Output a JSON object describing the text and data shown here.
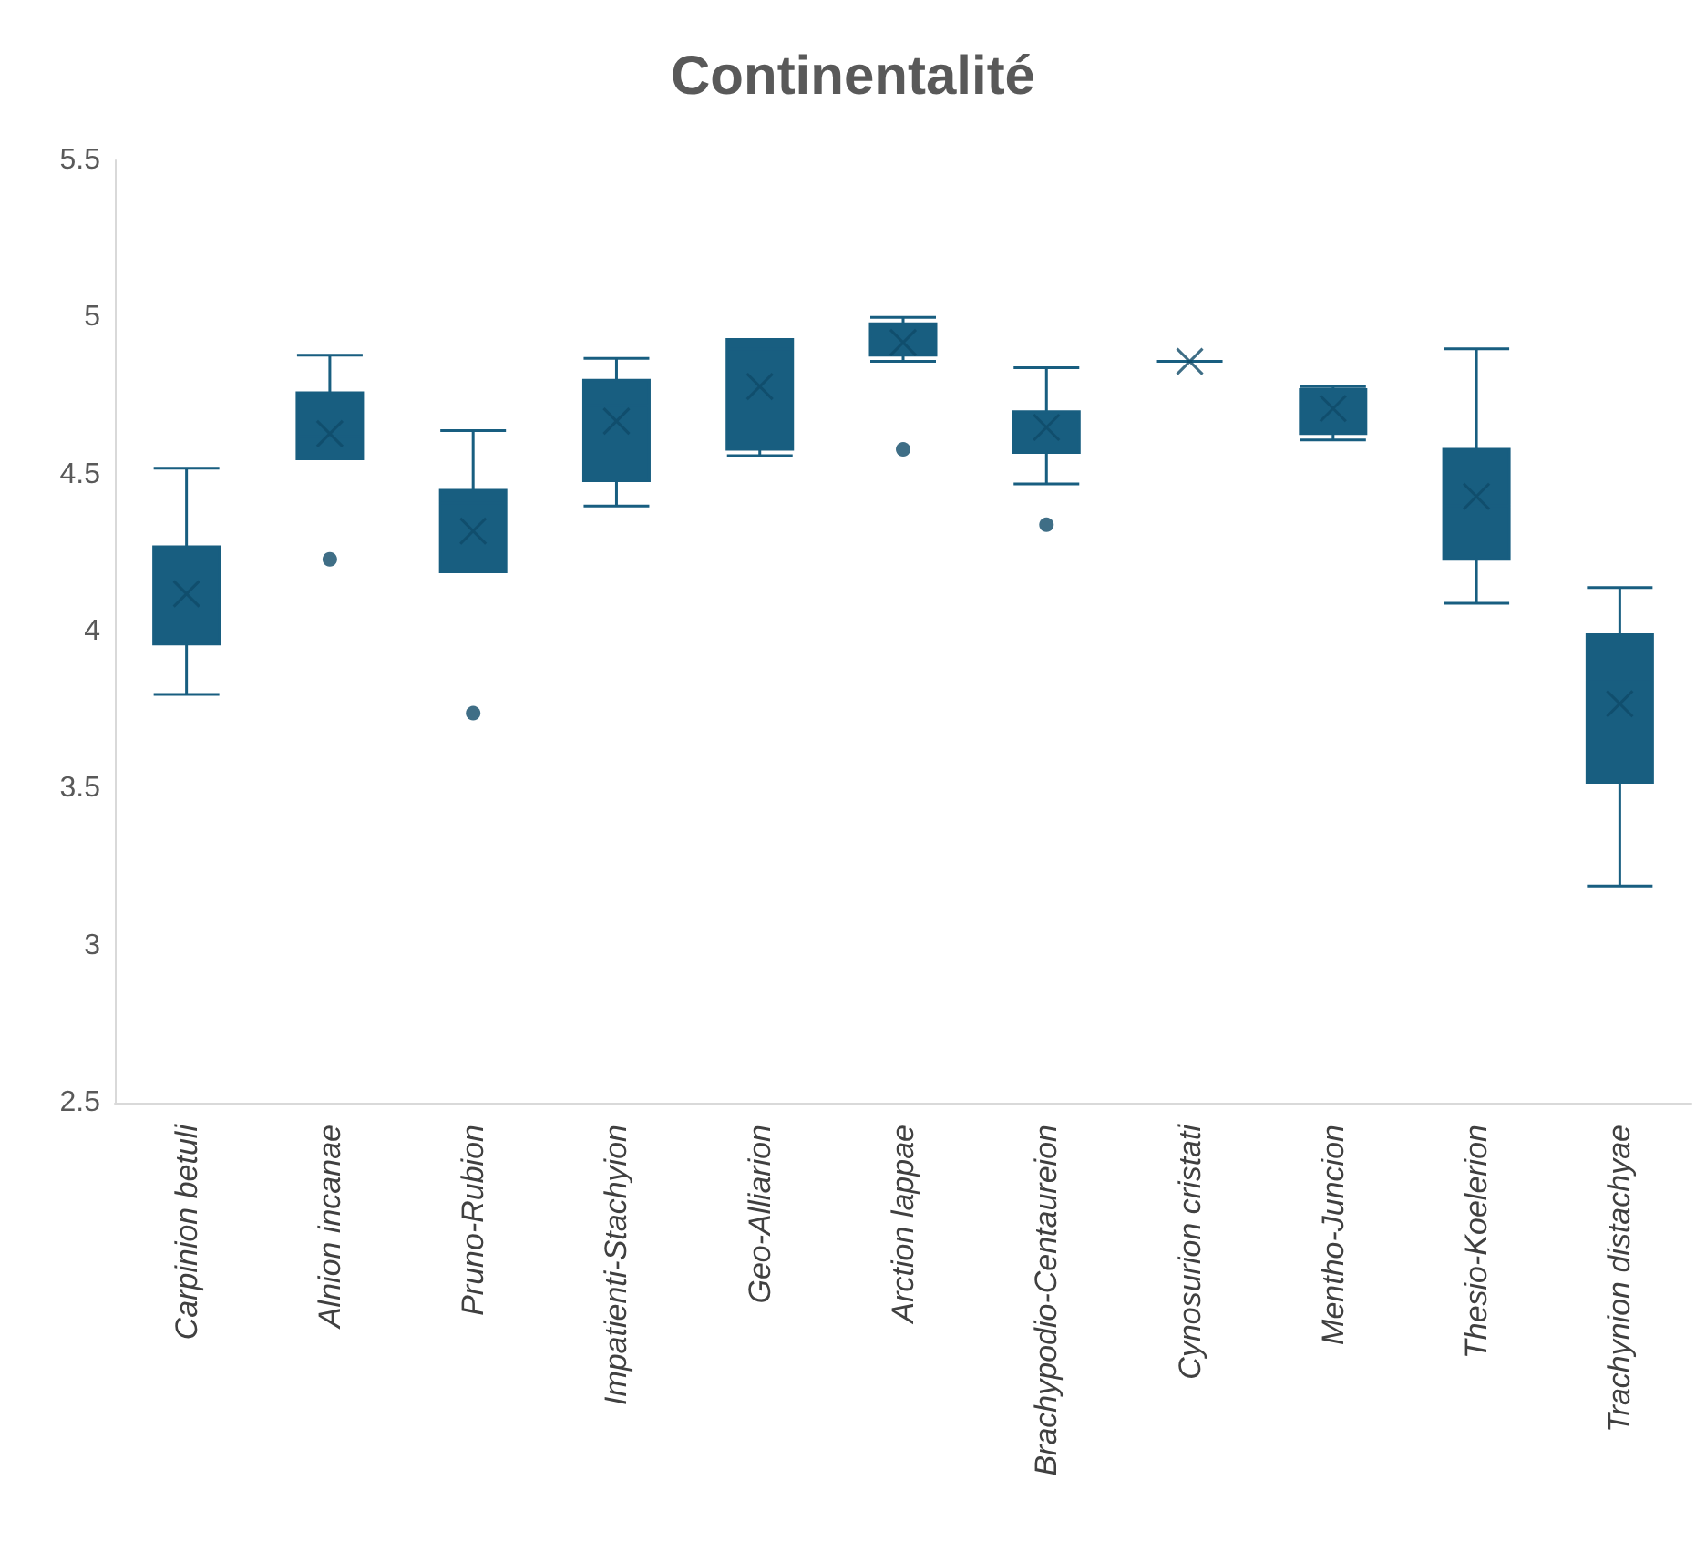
{
  "chart_data": {
    "type": "box",
    "title": "Continentalité",
    "categories": [
      "Carpinion betuli",
      "Alnion incanae",
      "Pruno-Rubion",
      "Impatienti-Stachyion",
      "Geo-Alliarion",
      "Arction lappae",
      "Brachypodio-Centaureion",
      "Cynosurion cristati",
      "Mentho-Juncion",
      "Thesio-Koelerion",
      "Trachynion distachyae"
    ],
    "color": "#185e80",
    "boxes": [
      {
        "low": 3.8,
        "q1": 3.96,
        "median": 4.1,
        "q3": 4.27,
        "high": 4.52,
        "mean": 4.12
      },
      {
        "low": 4.55,
        "q1": 4.55,
        "median": 4.62,
        "q3": 4.76,
        "high": 4.88,
        "mean": 4.63,
        "outliers": [
          4.23
        ]
      },
      {
        "low": 4.19,
        "q1": 4.19,
        "median": 4.41,
        "q3": 4.45,
        "high": 4.64,
        "mean": 4.32,
        "outliers": [
          3.74
        ]
      },
      {
        "low": 4.4,
        "q1": 4.48,
        "median": 4.72,
        "q3": 4.8,
        "high": 4.87,
        "mean": 4.67
      },
      {
        "low": 4.56,
        "q1": 4.58,
        "median": 4.9,
        "q3": 4.93,
        "high": 4.93,
        "mean": 4.78
      },
      {
        "low": 4.86,
        "q1": 4.88,
        "median": 4.94,
        "q3": 4.98,
        "high": 5.0,
        "mean": 4.92,
        "outliers": [
          4.58
        ]
      },
      {
        "low": 4.47,
        "q1": 4.57,
        "median": 4.64,
        "q3": 4.7,
        "high": 4.84,
        "mean": 4.65,
        "outliers": [
          4.34
        ]
      },
      {
        "low": 4.86,
        "q1": 4.86,
        "median": 4.86,
        "q3": 4.86,
        "high": 4.86,
        "mean": 4.86
      },
      {
        "low": 4.61,
        "q1": 4.63,
        "median": 4.73,
        "q3": 4.77,
        "high": 4.78,
        "mean": 4.71
      },
      {
        "low": 4.09,
        "q1": 4.23,
        "median": 4.4,
        "q3": 4.58,
        "high": 4.9,
        "mean": 4.43
      },
      {
        "low": 3.19,
        "q1": 3.52,
        "median": 3.84,
        "q3": 3.99,
        "high": 4.14,
        "mean": 3.77
      }
    ],
    "ylim": [
      2.5,
      5.5
    ],
    "yticks": [
      2.5,
      3,
      3.5,
      4,
      4.5,
      5,
      5.5
    ]
  }
}
